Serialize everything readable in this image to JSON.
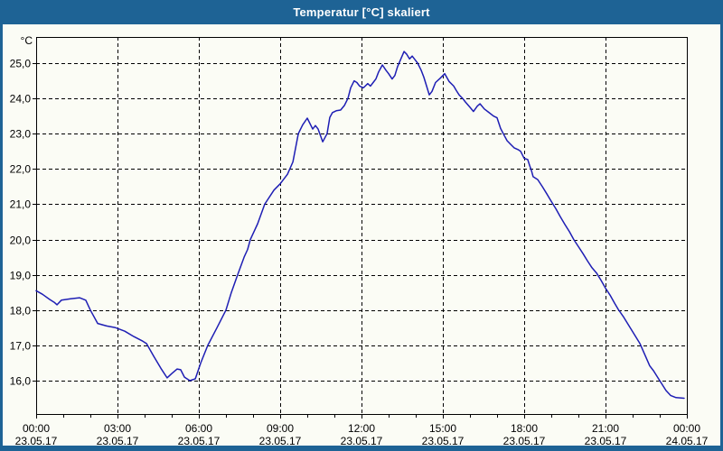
{
  "window": {
    "title": "Temperatur [°C] skaliert"
  },
  "colors": {
    "titlebar_bg": "#1e6395",
    "titlebar_text": "#ffffff",
    "window_border": "#1e6395",
    "chart_bg": "#fbfcf5",
    "grid": "#000000",
    "axis": "#000000",
    "label_text": "#000000",
    "line": "#1e1eb4"
  },
  "chart_data": {
    "type": "line",
    "title": "Temperatur [°C] skaliert",
    "ylabel": "°C",
    "ylim": [
      15.05,
      25.74
    ],
    "xlim_hours": [
      0,
      24
    ],
    "grid": "dashed",
    "legend": "none",
    "minor_tick_hours": 1,
    "y_ticks": [
      {
        "label": "25,0",
        "value": 25
      },
      {
        "label": "24,0",
        "value": 24
      },
      {
        "label": "23,0",
        "value": 23
      },
      {
        "label": "22,0",
        "value": 22
      },
      {
        "label": "21,0",
        "value": 21
      },
      {
        "label": "20,0",
        "value": 20
      },
      {
        "label": "19,0",
        "value": 19
      },
      {
        "label": "18,0",
        "value": 18
      },
      {
        "label": "17,0",
        "value": 17
      },
      {
        "label": "16,0",
        "value": 16
      }
    ],
    "x_ticks": [
      {
        "hour": 0,
        "time": "00:00",
        "date": "23.05.17"
      },
      {
        "hour": 3,
        "time": "03:00",
        "date": "23.05.17"
      },
      {
        "hour": 6,
        "time": "06:00",
        "date": "23.05.17"
      },
      {
        "hour": 9,
        "time": "09:00",
        "date": "23.05.17"
      },
      {
        "hour": 12,
        "time": "12:00",
        "date": "23.05.17"
      },
      {
        "hour": 15,
        "time": "15:00",
        "date": "23.05.17"
      },
      {
        "hour": 18,
        "time": "18:00",
        "date": "23.05.17"
      },
      {
        "hour": 21,
        "time": "21:00",
        "date": "23.05.17"
      },
      {
        "hour": 24,
        "time": "00:00",
        "date": "24.05.17"
      }
    ],
    "series": [
      {
        "name": "Temperatur [°C]",
        "color": "#1e1eb4",
        "points_hours_temp": [
          [
            0,
            18.55
          ],
          [
            0.23,
            18.45
          ],
          [
            0.5,
            18.3
          ],
          [
            0.67,
            18.22
          ],
          [
            0.77,
            18.15
          ],
          [
            0.93,
            18.28
          ],
          [
            1.27,
            18.32
          ],
          [
            1.6,
            18.35
          ],
          [
            1.83,
            18.28
          ],
          [
            2,
            18
          ],
          [
            2.27,
            17.62
          ],
          [
            2.6,
            17.55
          ],
          [
            2.93,
            17.5
          ],
          [
            3.27,
            17.4
          ],
          [
            3.6,
            17.25
          ],
          [
            3.93,
            17.12
          ],
          [
            4.07,
            17.05
          ],
          [
            4.33,
            16.7
          ],
          [
            4.6,
            16.35
          ],
          [
            4.83,
            16.08
          ],
          [
            5,
            16.2
          ],
          [
            5.2,
            16.33
          ],
          [
            5.33,
            16.31
          ],
          [
            5.47,
            16.1
          ],
          [
            5.67,
            16
          ],
          [
            5.87,
            16.05
          ],
          [
            6.07,
            16.5
          ],
          [
            6.33,
            17
          ],
          [
            6.67,
            17.5
          ],
          [
            7,
            18
          ],
          [
            7.2,
            18.5
          ],
          [
            7.43,
            19
          ],
          [
            7.67,
            19.5
          ],
          [
            7.8,
            19.72
          ],
          [
            7.9,
            20
          ],
          [
            8.17,
            20.45
          ],
          [
            8.43,
            21
          ],
          [
            8.77,
            21.4
          ],
          [
            9,
            21.58
          ],
          [
            9.27,
            21.85
          ],
          [
            9.47,
            22.2
          ],
          [
            9.57,
            22.6
          ],
          [
            9.67,
            23
          ],
          [
            9.83,
            23.25
          ],
          [
            10,
            23.44
          ],
          [
            10.2,
            23.13
          ],
          [
            10.3,
            23.23
          ],
          [
            10.4,
            23.13
          ],
          [
            10.57,
            22.77
          ],
          [
            10.73,
            23
          ],
          [
            10.83,
            23.46
          ],
          [
            10.93,
            23.6
          ],
          [
            11.07,
            23.65
          ],
          [
            11.23,
            23.67
          ],
          [
            11.37,
            23.8
          ],
          [
            11.5,
            24
          ],
          [
            11.6,
            24.3
          ],
          [
            11.73,
            24.5
          ],
          [
            11.83,
            24.45
          ],
          [
            11.93,
            24.35
          ],
          [
            12.07,
            24.3
          ],
          [
            12.23,
            24.42
          ],
          [
            12.33,
            24.35
          ],
          [
            12.43,
            24.45
          ],
          [
            12.53,
            24.55
          ],
          [
            12.63,
            24.75
          ],
          [
            12.77,
            24.95
          ],
          [
            12.9,
            24.8
          ],
          [
            13,
            24.7
          ],
          [
            13.13,
            24.55
          ],
          [
            13.23,
            24.65
          ],
          [
            13.33,
            24.9
          ],
          [
            13.47,
            25.15
          ],
          [
            13.57,
            25.33
          ],
          [
            13.67,
            25.25
          ],
          [
            13.77,
            25.12
          ],
          [
            13.87,
            25.2
          ],
          [
            13.97,
            25.1
          ],
          [
            14.07,
            25
          ],
          [
            14.2,
            24.8
          ],
          [
            14.3,
            24.6
          ],
          [
            14.4,
            24.35
          ],
          [
            14.5,
            24.1
          ],
          [
            14.6,
            24.2
          ],
          [
            14.73,
            24.45
          ],
          [
            14.9,
            24.57
          ],
          [
            15.07,
            24.7
          ],
          [
            15.23,
            24.48
          ],
          [
            15.4,
            24.35
          ],
          [
            15.5,
            24.22
          ],
          [
            15.6,
            24.1
          ],
          [
            15.73,
            24
          ],
          [
            15.83,
            23.9
          ],
          [
            16,
            23.75
          ],
          [
            16.13,
            23.63
          ],
          [
            16.27,
            23.78
          ],
          [
            16.37,
            23.85
          ],
          [
            16.53,
            23.7
          ],
          [
            16.67,
            23.62
          ],
          [
            16.87,
            23.5
          ],
          [
            17,
            23.45
          ],
          [
            17.13,
            23.15
          ],
          [
            17.23,
            23
          ],
          [
            17.37,
            22.8
          ],
          [
            17.5,
            22.7
          ],
          [
            17.63,
            22.6
          ],
          [
            17.77,
            22.55
          ],
          [
            17.87,
            22.5
          ],
          [
            18,
            22.3
          ],
          [
            18.13,
            22.27
          ],
          [
            18.2,
            22.1
          ],
          [
            18.27,
            21.95
          ],
          [
            18.33,
            21.78
          ],
          [
            18.5,
            21.7
          ],
          [
            18.67,
            21.5
          ],
          [
            18.83,
            21.3
          ],
          [
            19,
            21.08
          ],
          [
            19.17,
            20.87
          ],
          [
            19.33,
            20.65
          ],
          [
            19.5,
            20.43
          ],
          [
            19.67,
            20.22
          ],
          [
            19.83,
            20
          ],
          [
            20,
            19.8
          ],
          [
            20.17,
            19.6
          ],
          [
            20.33,
            19.4
          ],
          [
            20.5,
            19.2
          ],
          [
            20.67,
            19.05
          ],
          [
            20.83,
            18.85
          ],
          [
            21,
            18.62
          ],
          [
            21.17,
            18.42
          ],
          [
            21.33,
            18.2
          ],
          [
            21.47,
            18.02
          ],
          [
            21.67,
            17.8
          ],
          [
            21.87,
            17.55
          ],
          [
            22.07,
            17.3
          ],
          [
            22.27,
            17.05
          ],
          [
            22.47,
            16.7
          ],
          [
            22.63,
            16.42
          ],
          [
            22.77,
            16.28
          ],
          [
            23,
            16
          ],
          [
            23.23,
            15.72
          ],
          [
            23.4,
            15.58
          ],
          [
            23.6,
            15.52
          ],
          [
            23.9,
            15.5
          ]
        ]
      }
    ]
  }
}
